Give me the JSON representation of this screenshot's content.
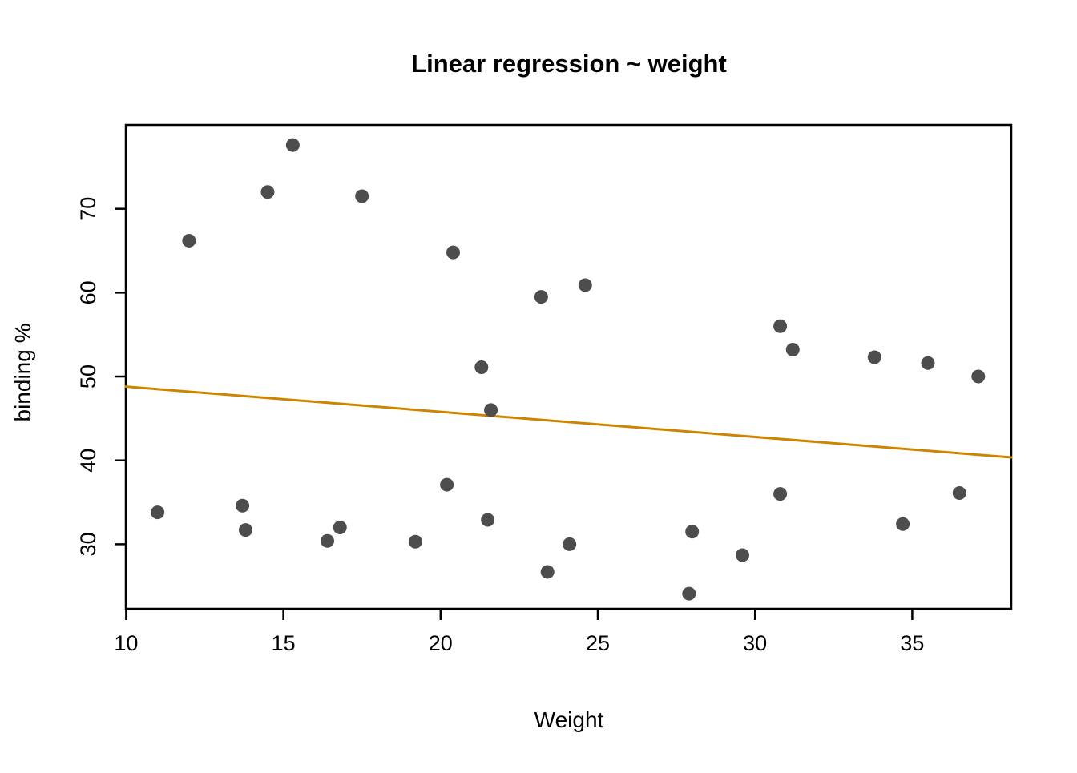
{
  "chart_data": {
    "type": "scatter",
    "title": "Linear regression ~ weight",
    "xlabel": "Weight",
    "ylabel": "binding %",
    "x_ticks": [
      10,
      15,
      20,
      25,
      30,
      35
    ],
    "y_ticks": [
      30,
      40,
      50,
      60,
      70
    ],
    "xlim": [
      9.99,
      38.15
    ],
    "ylim": [
      22.3,
      80.0
    ],
    "grid": false,
    "legend": "none",
    "point_color": "#4d4d4d",
    "point_radius": 8.5,
    "axis_color": "#000000",
    "background_color": "#ffffff",
    "points": [
      [
        11.0,
        33.8
      ],
      [
        12.0,
        66.2
      ],
      [
        13.7,
        34.6
      ],
      [
        13.8,
        31.7
      ],
      [
        14.5,
        72.0
      ],
      [
        15.3,
        77.6
      ],
      [
        16.4,
        30.4
      ],
      [
        16.8,
        32.0
      ],
      [
        17.5,
        71.5
      ],
      [
        19.2,
        30.3
      ],
      [
        20.2,
        37.1
      ],
      [
        20.4,
        64.8
      ],
      [
        21.3,
        51.1
      ],
      [
        21.5,
        32.9
      ],
      [
        21.6,
        46.0
      ],
      [
        23.2,
        59.5
      ],
      [
        23.4,
        26.7
      ],
      [
        24.1,
        30.0
      ],
      [
        24.6,
        60.9
      ],
      [
        27.9,
        24.1
      ],
      [
        28.0,
        31.5
      ],
      [
        29.6,
        28.7
      ],
      [
        30.8,
        56.0
      ],
      [
        30.8,
        36.0
      ],
      [
        31.2,
        53.2
      ],
      [
        33.8,
        52.3
      ],
      [
        34.7,
        32.4
      ],
      [
        35.5,
        51.6
      ],
      [
        36.5,
        36.1
      ],
      [
        37.1,
        50.0
      ]
    ],
    "regression_line": {
      "x1": 9.99,
      "y1": 48.8,
      "x2": 38.15,
      "y2": 40.35,
      "color": "#cd8500",
      "width": 3,
      "equation_slope": -0.3,
      "equation_intercept": 51.8
    }
  }
}
